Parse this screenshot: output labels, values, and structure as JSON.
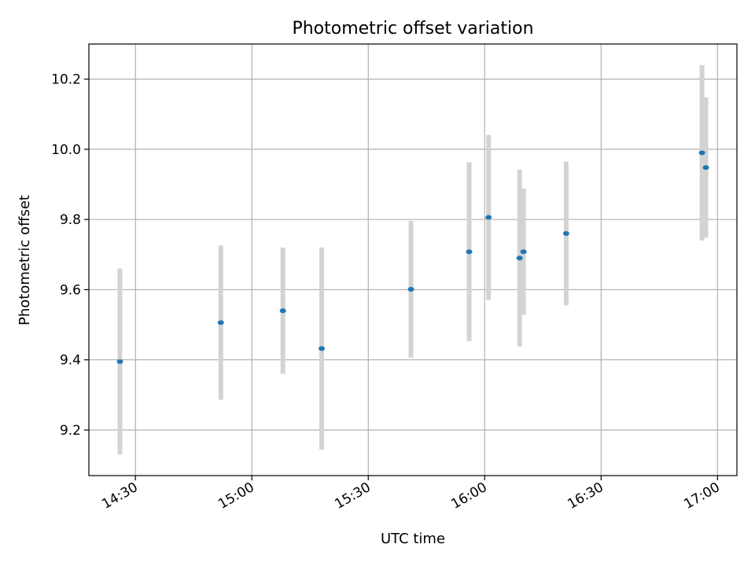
{
  "chart_data": {
    "type": "scatter",
    "title": "Photometric offset variation",
    "xlabel": "UTC time",
    "ylabel": "Photometric offset",
    "xlim": [
      "14:18",
      "17:05"
    ],
    "ylim": [
      9.07,
      10.3
    ],
    "x_ticks": [
      "14:30",
      "15:00",
      "15:30",
      "16:00",
      "16:30",
      "17:00"
    ],
    "y_ticks": [
      "9.2",
      "9.4",
      "9.6",
      "9.8",
      "10.0",
      "10.2"
    ],
    "grid": true,
    "errorbar_color": "#d3d3d3",
    "marker_color": "#1f77b4",
    "points": [
      {
        "x": "14:26",
        "y": 9.395,
        "err": 0.265
      },
      {
        "x": "14:52",
        "y": 9.506,
        "err": 0.22
      },
      {
        "x": "15:08",
        "y": 9.54,
        "err": 0.18
      },
      {
        "x": "15:18",
        "y": 9.432,
        "err": 0.288
      },
      {
        "x": "15:41",
        "y": 9.601,
        "err": 0.195
      },
      {
        "x": "15:56",
        "y": 9.708,
        "err": 0.255
      },
      {
        "x": "16:01",
        "y": 9.806,
        "err": 0.235
      },
      {
        "x": "16:09",
        "y": 9.69,
        "err": 0.252
      },
      {
        "x": "16:10",
        "y": 9.708,
        "err": 0.18
      },
      {
        "x": "16:21",
        "y": 9.76,
        "err": 0.205
      },
      {
        "x": "16:56",
        "y": 9.99,
        "err": 0.25
      },
      {
        "x": "16:57",
        "y": 9.948,
        "err": 0.2
      }
    ]
  }
}
